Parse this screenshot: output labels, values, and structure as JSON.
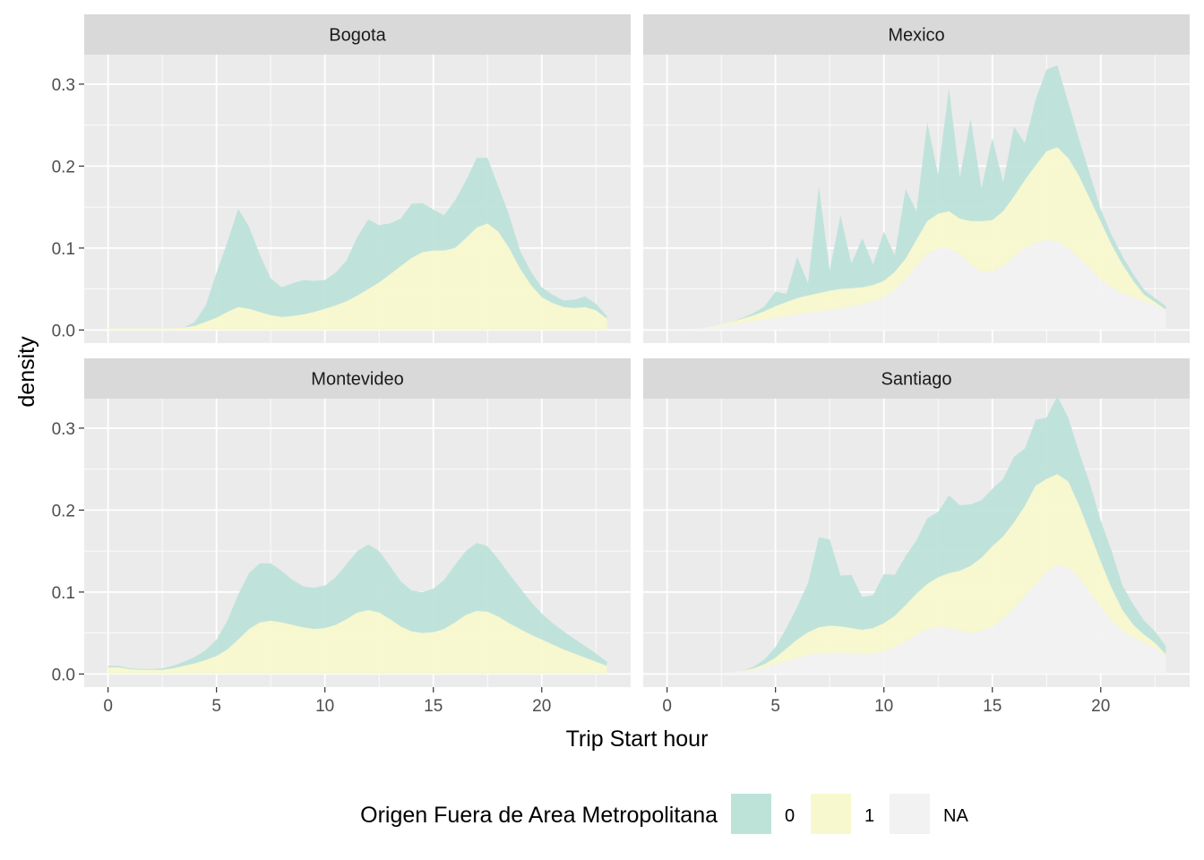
{
  "chart_data": {
    "type": "area",
    "facets": [
      {
        "panel": "Bogota",
        "x": [
          0,
          0.5,
          1,
          1.5,
          2,
          2.5,
          3,
          3.5,
          4,
          4.5,
          5,
          5.5,
          6,
          6.5,
          7,
          7.5,
          8,
          8.5,
          9,
          9.5,
          10,
          10.5,
          11,
          11.5,
          12,
          12.5,
          13,
          13.5,
          14,
          14.5,
          15,
          15.5,
          16,
          16.5,
          17,
          17.5,
          18,
          18.5,
          19,
          19.5,
          20,
          20.5,
          21,
          21.5,
          22,
          22.5,
          23
        ],
        "series": [
          {
            "name": "1",
            "values": [
              0.002,
              0.002,
              0.002,
              0.002,
              0.002,
              0.002,
              0.002,
              0.003,
              0.005,
              0.01,
              0.015,
              0.022,
              0.028,
              0.026,
              0.022,
              0.018,
              0.016,
              0.017,
              0.019,
              0.022,
              0.026,
              0.03,
              0.035,
              0.042,
              0.05,
              0.058,
              0.068,
              0.078,
              0.088,
              0.095,
              0.097,
              0.097,
              0.1,
              0.112,
              0.125,
              0.13,
              0.12,
              0.1,
              0.075,
              0.055,
              0.04,
              0.033,
              0.028,
              0.027,
              0.028,
              0.024,
              0.014
            ]
          },
          {
            "name": "0",
            "values": [
              0,
              0,
              0,
              0,
              0,
              0,
              0,
              0,
              0.005,
              0.02,
              0.055,
              0.085,
              0.12,
              0.1,
              0.07,
              0.045,
              0.036,
              0.04,
              0.042,
              0.038,
              0.035,
              0.04,
              0.05,
              0.072,
              0.085,
              0.07,
              0.062,
              0.058,
              0.066,
              0.06,
              0.05,
              0.043,
              0.058,
              0.07,
              0.085,
              0.08,
              0.055,
              0.04,
              0.022,
              0.016,
              0.012,
              0.01,
              0.008,
              0.01,
              0.013,
              0.008,
              0.003
            ]
          }
        ]
      },
      {
        "panel": "Mexico",
        "x": [
          0,
          0.5,
          1,
          1.5,
          2,
          2.5,
          3,
          3.5,
          4,
          4.5,
          5,
          5.5,
          6,
          6.5,
          7,
          7.5,
          8,
          8.5,
          9,
          9.5,
          10,
          10.5,
          11,
          11.5,
          12,
          12.5,
          13,
          13.5,
          14,
          14.5,
          15,
          15.5,
          16,
          16.5,
          17,
          17.5,
          18,
          18.5,
          19,
          19.5,
          20,
          20.5,
          21,
          21.5,
          22,
          22.5,
          23
        ],
        "series": [
          {
            "name": "NA",
            "values": [
              0.001,
              0.001,
              0.001,
              0.002,
              0.003,
              0.005,
              0.007,
              0.009,
              0.011,
              0.013,
              0.015,
              0.017,
              0.019,
              0.021,
              0.023,
              0.025,
              0.027,
              0.029,
              0.031,
              0.035,
              0.04,
              0.05,
              0.062,
              0.078,
              0.093,
              0.1,
              0.1,
              0.093,
              0.08,
              0.07,
              0.072,
              0.078,
              0.09,
              0.1,
              0.106,
              0.11,
              0.108,
              0.1,
              0.088,
              0.075,
              0.062,
              0.052,
              0.045,
              0.04,
              0.035,
              0.031,
              0.024
            ]
          },
          {
            "name": "1",
            "values": [
              0,
              0,
              0,
              0,
              0.001,
              0.002,
              0.003,
              0.005,
              0.007,
              0.01,
              0.014,
              0.017,
              0.02,
              0.021,
              0.022,
              0.023,
              0.023,
              0.022,
              0.021,
              0.02,
              0.02,
              0.021,
              0.025,
              0.032,
              0.04,
              0.042,
              0.045,
              0.043,
              0.053,
              0.063,
              0.062,
              0.067,
              0.073,
              0.083,
              0.095,
              0.108,
              0.115,
              0.11,
              0.1,
              0.085,
              0.07,
              0.052,
              0.035,
              0.02,
              0.008,
              0.003,
              0.001
            ]
          },
          {
            "name": "0",
            "values": [
              0,
              0,
              0,
              0,
              0,
              0,
              0,
              0.001,
              0.003,
              0.006,
              0.018,
              0.01,
              0.05,
              0.015,
              0.13,
              0.025,
              0.09,
              0.03,
              0.06,
              0.025,
              0.06,
              0.02,
              0.085,
              0.035,
              0.12,
              0.048,
              0.15,
              0.05,
              0.125,
              0.04,
              0.1,
              0.035,
              0.085,
              0.045,
              0.08,
              0.1,
              0.1,
              0.068,
              0.045,
              0.03,
              0.015,
              0.012,
              0.01,
              0.008,
              0.006,
              0.005,
              0.004
            ]
          }
        ]
      },
      {
        "panel": "Montevideo",
        "x": [
          0,
          0.5,
          1,
          1.5,
          2,
          2.5,
          3,
          3.5,
          4,
          4.5,
          5,
          5.5,
          6,
          6.5,
          7,
          7.5,
          8,
          8.5,
          9,
          9.5,
          10,
          10.5,
          11,
          11.5,
          12,
          12.5,
          13,
          13.5,
          14,
          14.5,
          15,
          15.5,
          16,
          16.5,
          17,
          17.5,
          18,
          18.5,
          19,
          19.5,
          20,
          20.5,
          21,
          21.5,
          22,
          22.5,
          23
        ],
        "series": [
          {
            "name": "1",
            "values": [
              0.008,
              0.008,
              0.006,
              0.005,
              0.005,
              0.005,
              0.007,
              0.01,
              0.013,
              0.017,
              0.022,
              0.03,
              0.042,
              0.055,
              0.063,
              0.065,
              0.063,
              0.06,
              0.057,
              0.055,
              0.056,
              0.06,
              0.067,
              0.075,
              0.078,
              0.075,
              0.067,
              0.058,
              0.052,
              0.05,
              0.051,
              0.055,
              0.063,
              0.072,
              0.077,
              0.076,
              0.07,
              0.062,
              0.055,
              0.048,
              0.042,
              0.036,
              0.03,
              0.025,
              0.02,
              0.015,
              0.01
            ]
          },
          {
            "name": "0",
            "values": [
              0.002,
              0.002,
              0.001,
              0.001,
              0.001,
              0.002,
              0.003,
              0.005,
              0.008,
              0.012,
              0.02,
              0.035,
              0.055,
              0.068,
              0.072,
              0.07,
              0.063,
              0.055,
              0.05,
              0.05,
              0.052,
              0.058,
              0.067,
              0.075,
              0.08,
              0.075,
              0.065,
              0.055,
              0.05,
              0.05,
              0.053,
              0.06,
              0.07,
              0.078,
              0.083,
              0.08,
              0.07,
              0.06,
              0.05,
              0.04,
              0.032,
              0.026,
              0.022,
              0.018,
              0.014,
              0.01,
              0.005
            ]
          }
        ]
      },
      {
        "panel": "Santiago",
        "x": [
          0,
          0.5,
          1,
          1.5,
          2,
          2.5,
          3,
          3.5,
          4,
          4.5,
          5,
          5.5,
          6,
          6.5,
          7,
          7.5,
          8,
          8.5,
          9,
          9.5,
          10,
          10.5,
          11,
          11.5,
          12,
          12.5,
          13,
          13.5,
          14,
          14.5,
          15,
          15.5,
          16,
          16.5,
          17,
          17.5,
          18,
          18.5,
          19,
          19.5,
          20,
          20.5,
          21,
          21.5,
          22,
          22.5,
          23
        ],
        "series": [
          {
            "name": "NA",
            "values": [
              0.001,
              0.001,
              0.001,
              0.001,
              0.001,
              0.001,
              0.002,
              0.003,
              0.005,
              0.008,
              0.012,
              0.016,
              0.02,
              0.023,
              0.025,
              0.026,
              0.026,
              0.025,
              0.024,
              0.025,
              0.028,
              0.033,
              0.04,
              0.048,
              0.055,
              0.058,
              0.057,
              0.053,
              0.05,
              0.052,
              0.058,
              0.068,
              0.08,
              0.095,
              0.11,
              0.125,
              0.133,
              0.13,
              0.118,
              0.1,
              0.082,
              0.065,
              0.053,
              0.045,
              0.038,
              0.032,
              0.022
            ]
          },
          {
            "name": "1",
            "values": [
              0,
              0,
              0,
              0,
              0,
              0,
              0,
              0.001,
              0.002,
              0.004,
              0.008,
              0.015,
              0.022,
              0.028,
              0.032,
              0.033,
              0.032,
              0.031,
              0.03,
              0.031,
              0.034,
              0.038,
              0.044,
              0.05,
              0.055,
              0.06,
              0.066,
              0.073,
              0.082,
              0.09,
              0.098,
              0.1,
              0.105,
              0.11,
              0.12,
              0.113,
              0.111,
              0.105,
              0.088,
              0.072,
              0.055,
              0.04,
              0.025,
              0.015,
              0.01,
              0.006,
              0.002
            ]
          },
          {
            "name": "0",
            "values": [
              0,
              0,
              0,
              0,
              0,
              0,
              0,
              0,
              0.002,
              0.006,
              0.013,
              0.025,
              0.04,
              0.06,
              0.11,
              0.105,
              0.062,
              0.065,
              0.04,
              0.04,
              0.06,
              0.05,
              0.06,
              0.065,
              0.08,
              0.08,
              0.095,
              0.08,
              0.075,
              0.07,
              0.07,
              0.07,
              0.08,
              0.07,
              0.08,
              0.075,
              0.095,
              0.078,
              0.065,
              0.06,
              0.05,
              0.045,
              0.03,
              0.025,
              0.017,
              0.014,
              0.01
            ]
          }
        ]
      }
    ],
    "xlabel": "Trip Start hour",
    "ylabel": "density",
    "x_ticks": [
      0,
      5,
      10,
      15,
      20
    ],
    "y_ticks": [
      0.0,
      0.1,
      0.2,
      0.3
    ],
    "x_tick_labels": [
      "0",
      "5",
      "10",
      "15",
      "20"
    ],
    "y_tick_labels": [
      "0.0",
      "0.1",
      "0.2",
      "0.3"
    ],
    "xlim": [
      -1.1,
      24.1
    ],
    "ylim": [
      -0.016,
      0.336
    ],
    "stacked": true,
    "grid": true,
    "legend": {
      "title": "Origen Fuera de Area Metropolitana",
      "position": "bottom",
      "entries": [
        {
          "label": "0",
          "color": "#BDE3D9"
        },
        {
          "label": "1",
          "color": "#F8F8CF"
        },
        {
          "label": "NA",
          "color": "#F2F2F2"
        }
      ]
    },
    "colors": {
      "panel_background": "#EBEBEB",
      "strip_background": "#D9D9D9",
      "grid": "#FFFFFF"
    }
  }
}
